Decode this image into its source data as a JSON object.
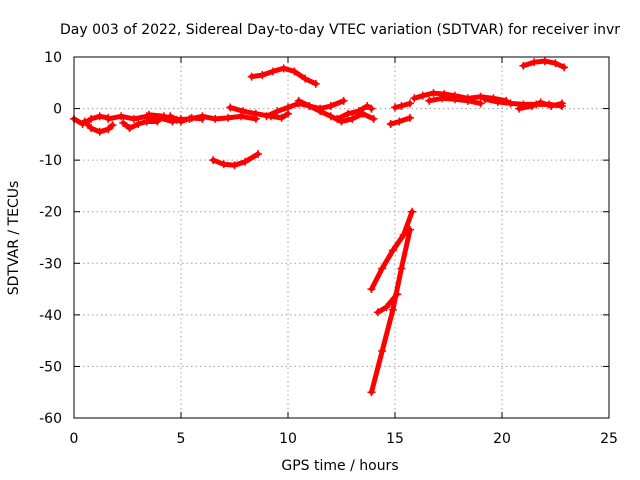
{
  "chart_data": {
    "type": "scatter",
    "title": "Day 003 of 2022, Sidereal Day-to-day VTEC variation (SDTVAR) for receiver invr",
    "xlabel": "GPS time / hours",
    "ylabel": "SDTVAR / TECUs",
    "xlim": [
      0,
      25
    ],
    "ylim": [
      -60,
      10
    ],
    "xticks": [
      0,
      5,
      10,
      15,
      20,
      25
    ],
    "yticks": [
      -60,
      -50,
      -40,
      -30,
      -20,
      -10,
      0,
      10
    ],
    "grid": true,
    "series": [
      {
        "name": "SDTVAR",
        "color": "#ff0000",
        "tracks": [
          [
            [
              0.0,
              -2.0
            ],
            [
              0.4,
              -3.0
            ],
            [
              0.8,
              -2.0
            ],
            [
              1.2,
              -1.5
            ],
            [
              1.6,
              -1.8
            ]
          ],
          [
            [
              0.5,
              -2.5
            ],
            [
              0.8,
              -3.8
            ],
            [
              1.2,
              -4.5
            ],
            [
              1.6,
              -4.0
            ],
            [
              1.8,
              -3.2
            ]
          ],
          [
            [
              1.6,
              -2.0
            ],
            [
              2.2,
              -1.5
            ],
            [
              2.8,
              -2.0
            ],
            [
              3.4,
              -1.5
            ],
            [
              4.0,
              -1.8
            ],
            [
              4.6,
              -2.5
            ],
            [
              5.0,
              -2.0
            ]
          ],
          [
            [
              2.3,
              -2.8
            ],
            [
              2.6,
              -3.8
            ],
            [
              3.0,
              -3.0
            ],
            [
              3.4,
              -2.5
            ],
            [
              3.9,
              -2.5
            ]
          ],
          [
            [
              3.5,
              -1.2
            ],
            [
              4.2,
              -1.5
            ],
            [
              4.8,
              -2.2
            ],
            [
              5.4,
              -2.0
            ],
            [
              6.0,
              -1.5
            ],
            [
              6.6,
              -2.0
            ],
            [
              7.2,
              -1.8
            ],
            [
              7.8,
              -1.5
            ],
            [
              8.5,
              -2.0
            ]
          ],
          [
            [
              4.5,
              -1.5
            ],
            [
              5.0,
              -2.5
            ],
            [
              5.5,
              -1.8
            ],
            [
              6.0,
              -2.0
            ]
          ],
          [
            [
              6.5,
              -10.0
            ],
            [
              7.0,
              -10.8
            ],
            [
              7.5,
              -11.0
            ],
            [
              8.0,
              -10.3
            ],
            [
              8.6,
              -8.8
            ]
          ],
          [
            [
              7.3,
              0.2
            ],
            [
              7.9,
              -0.5
            ],
            [
              8.5,
              -1.0
            ],
            [
              9.2,
              -1.5
            ],
            [
              9.7,
              -1.8
            ],
            [
              10.0,
              -1.0
            ]
          ],
          [
            [
              8.3,
              6.2
            ],
            [
              8.8,
              6.5
            ],
            [
              9.3,
              7.2
            ],
            [
              9.8,
              7.8
            ],
            [
              10.3,
              7.2
            ],
            [
              10.8,
              5.8
            ],
            [
              11.3,
              4.8
            ]
          ],
          [
            [
              9.0,
              -1.5
            ],
            [
              9.5,
              -0.5
            ],
            [
              10.0,
              0.2
            ],
            [
              10.5,
              1.0
            ],
            [
              11.0,
              0.5
            ],
            [
              11.5,
              0.0
            ],
            [
              12.0,
              0.5
            ],
            [
              12.6,
              1.5
            ]
          ],
          [
            [
              10.5,
              1.5
            ],
            [
              11.0,
              0.5
            ],
            [
              11.5,
              -0.5
            ],
            [
              12.0,
              -1.5
            ],
            [
              12.5,
              -2.5
            ],
            [
              13.0,
              -2.0
            ],
            [
              13.5,
              -1.0
            ],
            [
              14.0,
              -2.0
            ]
          ],
          [
            [
              12.3,
              -2.0
            ],
            [
              12.8,
              -1.0
            ],
            [
              13.3,
              -0.5
            ],
            [
              13.7,
              0.5
            ],
            [
              13.9,
              0.0
            ]
          ],
          [
            [
              13.9,
              -35.0
            ],
            [
              14.4,
              -31.0
            ],
            [
              14.9,
              -27.5
            ],
            [
              15.4,
              -24.5
            ],
            [
              15.8,
              -20.0
            ]
          ],
          [
            [
              14.2,
              -39.5
            ],
            [
              14.6,
              -38.5
            ],
            [
              15.1,
              -36.0
            ]
          ],
          [
            [
              13.9,
              -55.0
            ],
            [
              14.4,
              -47.0
            ],
            [
              14.9,
              -39.0
            ],
            [
              15.3,
              -31.0
            ],
            [
              15.7,
              -23.5
            ]
          ],
          [
            [
              14.8,
              -3.0
            ],
            [
              15.2,
              -2.5
            ],
            [
              15.7,
              -1.8
            ]
          ],
          [
            [
              15.0,
              0.2
            ],
            [
              15.3,
              0.5
            ],
            [
              15.7,
              1.0
            ]
          ],
          [
            [
              15.9,
              2.0
            ],
            [
              16.3,
              2.5
            ],
            [
              16.8,
              3.0
            ],
            [
              17.3,
              2.8
            ],
            [
              17.8,
              2.5
            ],
            [
              18.4,
              2.0
            ],
            [
              19.0,
              2.3
            ],
            [
              19.6,
              2.0
            ],
            [
              20.2,
              1.5
            ]
          ],
          [
            [
              16.6,
              1.5
            ],
            [
              17.2,
              2.0
            ],
            [
              17.8,
              1.8
            ],
            [
              18.4,
              1.5
            ],
            [
              19.0,
              1.0
            ]
          ],
          [
            [
              19.2,
              1.8
            ],
            [
              19.8,
              1.3
            ],
            [
              20.4,
              1.0
            ],
            [
              21.0,
              0.8
            ],
            [
              21.6,
              0.8
            ],
            [
              22.2,
              0.8
            ],
            [
              22.8,
              0.5
            ]
          ],
          [
            [
              20.8,
              0.0
            ],
            [
              21.4,
              0.5
            ],
            [
              21.8,
              1.2
            ],
            [
              22.3,
              0.5
            ],
            [
              22.8,
              1.0
            ]
          ],
          [
            [
              21.0,
              8.3
            ],
            [
              21.5,
              9.0
            ],
            [
              22.0,
              9.2
            ],
            [
              22.5,
              8.8
            ],
            [
              22.9,
              8.0
            ]
          ]
        ]
      }
    ]
  }
}
